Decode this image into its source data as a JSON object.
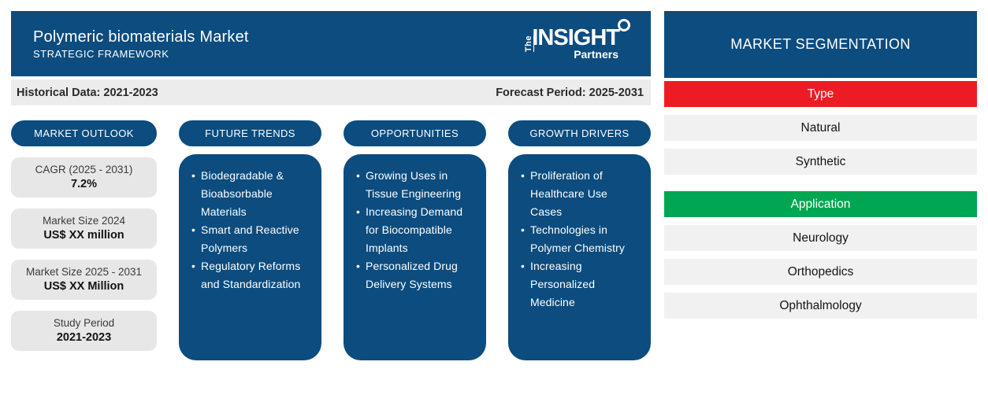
{
  "header": {
    "title": "Polymeric biomaterials Market",
    "subtitle": "STRATEGIC FRAMEWORK",
    "logo": {
      "the": "The",
      "insight": "INSIGHT",
      "partners": "Partners"
    }
  },
  "period_bar": {
    "historical": "Historical Data: 2021-2023",
    "forecast": "Forecast Period: 2025-2031"
  },
  "market_outlook": {
    "title": "MARKET OUTLOOK",
    "stats": [
      {
        "label": "CAGR (2025 - 2031)",
        "value": "7.2%"
      },
      {
        "label": "Market Size 2024",
        "value": "US$ XX million"
      },
      {
        "label": "Market Size 2025 - 2031",
        "value": "US$ XX Million"
      },
      {
        "label": "Study Period",
        "value": "2021-2023"
      }
    ]
  },
  "columns": [
    {
      "title": "FUTURE TRENDS",
      "items": [
        "Biodegradable & Bioabsorbable Materials",
        "Smart and Reactive Polymers",
        "Regulatory Reforms and Standardization"
      ]
    },
    {
      "title": "OPPORTUNITIES",
      "items": [
        "Growing Uses in Tissue Engineering",
        "Increasing Demand for Biocompatible Implants",
        "Personalized Drug Delivery Systems"
      ]
    },
    {
      "title": "GROWTH DRIVERS",
      "items": [
        "Proliferation of Healthcare Use Cases",
        "Technologies in Polymer Chemistry",
        "Increasing Personalized Medicine"
      ]
    }
  ],
  "segmentation": {
    "title": "MARKET SEGMENTATION",
    "groups": [
      {
        "label": "Type",
        "color": "#ed1c24",
        "items": [
          "Natural",
          "Synthetic"
        ]
      },
      {
        "label": "Application",
        "color": "#00a651",
        "items": [
          "Neurology",
          "Orthopedics",
          "Ophthalmology"
        ]
      }
    ]
  },
  "colors": {
    "primary_blue": "#0c4c7e",
    "accent_red": "#ed1c24",
    "accent_green": "#00a651",
    "stat_box_gray": "#e7e7e7",
    "period_bar_gray": "#ececec",
    "segment_item_gray": "#f1f1f2"
  }
}
